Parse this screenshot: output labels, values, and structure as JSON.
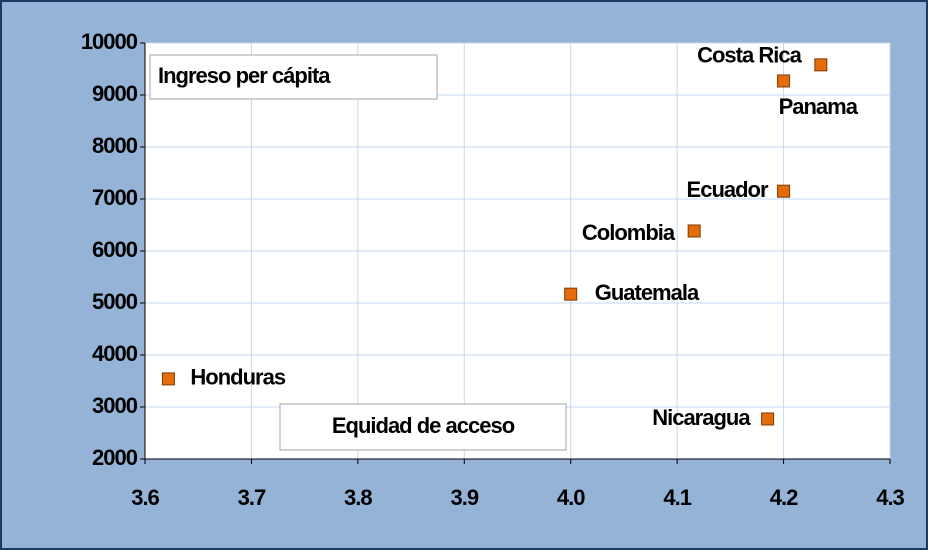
{
  "chart_data": {
    "type": "scatter",
    "ylabel": "Ingreso per cápita",
    "xlabel": "Equidad de acceso",
    "series": [
      {
        "name": null,
        "color": "#e46c0a",
        "labels": [
          "Honduras",
          "Guatemala",
          "Colombia",
          "Ecuador",
          "Panama",
          "Costa Rica",
          "Nicaragua"
        ],
        "x": [
          3.622,
          4.0,
          4.116,
          4.2,
          4.2,
          4.235,
          4.185
        ],
        "values": [
          3540,
          5170,
          6385,
          7150,
          9270,
          9580,
          2770
        ]
      }
    ],
    "xlim": [
      3.6,
      4.3
    ],
    "xticks": [
      3.6,
      3.7,
      3.8,
      3.9,
      {
        "value": 4,
        "label": "4.0"
      },
      4.1,
      4.2,
      4.3
    ],
    "ylim": [
      2000,
      10000
    ],
    "yticks": [
      2000,
      3000,
      4000,
      5000,
      6000,
      7000,
      8000,
      9000,
      10000
    ],
    "grid": true
  }
}
